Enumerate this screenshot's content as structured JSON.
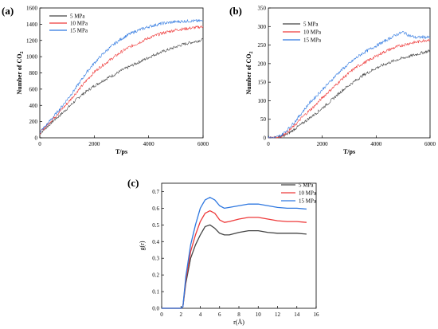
{
  "colors": {
    "5 MPa": "#444444",
    "10 MPa": "#ee3a3a",
    "15 MPa": "#2f78e0"
  },
  "chart_data": [
    {
      "panel": "(a)",
      "type": "line",
      "xlabel": "T/ps",
      "ylabel_main": "Number of CO",
      "ylabel_sub": "2",
      "xlim": [
        0,
        6000
      ],
      "ylim": [
        0,
        1600
      ],
      "xticks": [
        0,
        2000,
        4000,
        6000
      ],
      "yticks": [
        0,
        200,
        400,
        600,
        800,
        1000,
        1200,
        1400,
        1600
      ],
      "legend": "top-left",
      "series": [
        {
          "name": "5 MPa",
          "x": [
            0,
            250,
            500,
            750,
            1000,
            1250,
            1500,
            1750,
            2000,
            2250,
            2500,
            2750,
            3000,
            3250,
            3500,
            3750,
            4000,
            4250,
            4500,
            4750,
            5000,
            5250,
            5500,
            5750,
            6000
          ],
          "y": [
            50,
            130,
            210,
            280,
            360,
            440,
            520,
            580,
            640,
            690,
            740,
            780,
            830,
            870,
            910,
            950,
            990,
            1030,
            1060,
            1090,
            1120,
            1150,
            1170,
            1190,
            1210
          ]
        },
        {
          "name": "10 MPa",
          "x": [
            0,
            250,
            500,
            750,
            1000,
            1250,
            1500,
            1750,
            2000,
            2250,
            2500,
            2750,
            3000,
            3250,
            3500,
            3750,
            4000,
            4250,
            4500,
            4750,
            5000,
            5250,
            5500,
            5750,
            6000
          ],
          "y": [
            60,
            150,
            240,
            330,
            420,
            520,
            620,
            720,
            810,
            880,
            940,
            1000,
            1060,
            1110,
            1150,
            1190,
            1230,
            1260,
            1290,
            1310,
            1330,
            1340,
            1350,
            1360,
            1370
          ]
        },
        {
          "name": "15 MPa",
          "x": [
            0,
            250,
            500,
            750,
            1000,
            1250,
            1500,
            1750,
            2000,
            2250,
            2500,
            2750,
            3000,
            3250,
            3500,
            3750,
            4000,
            4250,
            4500,
            4750,
            5000,
            5250,
            5500,
            5750,
            6000
          ],
          "y": [
            70,
            160,
            260,
            360,
            470,
            580,
            700,
            820,
            920,
            1010,
            1090,
            1160,
            1220,
            1270,
            1310,
            1340,
            1370,
            1390,
            1410,
            1420,
            1430,
            1435,
            1440,
            1440,
            1440
          ]
        }
      ]
    },
    {
      "panel": "(b)",
      "type": "line",
      "xlabel": "T/ps",
      "ylabel_main": "Number of CO",
      "ylabel_sub": "2",
      "xlim": [
        0,
        6000
      ],
      "ylim": [
        0,
        350
      ],
      "xticks": [
        0,
        2000,
        4000,
        6000
      ],
      "yticks": [
        0,
        50,
        100,
        150,
        200,
        250,
        300,
        350
      ],
      "legend": "top-center",
      "series": [
        {
          "name": "5 MPa",
          "x": [
            0,
            250,
            500,
            750,
            1000,
            1250,
            1500,
            1750,
            2000,
            2250,
            2500,
            2750,
            3000,
            3250,
            3500,
            3750,
            4000,
            4250,
            4500,
            4750,
            5000,
            5250,
            5500,
            5750,
            6000
          ],
          "y": [
            0,
            0,
            3,
            12,
            25,
            38,
            52,
            65,
            80,
            95,
            112,
            128,
            142,
            155,
            168,
            178,
            188,
            196,
            203,
            210,
            215,
            220,
            225,
            230,
            235
          ]
        },
        {
          "name": "10 MPa",
          "x": [
            0,
            250,
            500,
            750,
            1000,
            1250,
            1500,
            1750,
            2000,
            2250,
            2500,
            2750,
            3000,
            3250,
            3500,
            3750,
            4000,
            4250,
            4500,
            4750,
            5000,
            5250,
            5500,
            5750,
            6000
          ],
          "y": [
            0,
            0,
            5,
            18,
            35,
            55,
            72,
            88,
            108,
            125,
            142,
            160,
            175,
            190,
            200,
            210,
            220,
            230,
            238,
            245,
            250,
            255,
            258,
            262,
            265
          ]
        },
        {
          "name": "15 MPa",
          "x": [
            0,
            250,
            500,
            750,
            1000,
            1250,
            1500,
            1750,
            2000,
            2250,
            2500,
            2750,
            3000,
            3250,
            3500,
            3750,
            4000,
            4250,
            4500,
            4750,
            5000,
            5250,
            5500,
            5750,
            6000
          ],
          "y": [
            0,
            0,
            8,
            25,
            45,
            68,
            92,
            110,
            130,
            148,
            168,
            185,
            200,
            215,
            228,
            238,
            248,
            258,
            268,
            278,
            285,
            275,
            270,
            272,
            270
          ]
        }
      ]
    },
    {
      "panel": "(c)",
      "type": "line",
      "xlabel": "r(Å)",
      "ylabel_main": "g(r)",
      "xlim": [
        0,
        16
      ],
      "ylim": [
        0,
        0.75
      ],
      "xticks": [
        0,
        2,
        4,
        6,
        8,
        10,
        12,
        14,
        16
      ],
      "yticks": [
        0.0,
        0.1,
        0.2,
        0.3,
        0.4,
        0.5,
        0.6,
        0.7
      ],
      "legend": "top-right",
      "series": [
        {
          "name": "5 MPa",
          "x": [
            0,
            1,
            2,
            2.2,
            2.5,
            3,
            3.5,
            4,
            4.5,
            5,
            5.5,
            6,
            6.5,
            7,
            8,
            9,
            10,
            11,
            12,
            13,
            14,
            15
          ],
          "y": [
            0,
            0,
            0,
            0.01,
            0.15,
            0.3,
            0.38,
            0.44,
            0.49,
            0.5,
            0.48,
            0.45,
            0.44,
            0.44,
            0.455,
            0.465,
            0.465,
            0.455,
            0.45,
            0.45,
            0.45,
            0.445
          ]
        },
        {
          "name": "10 MPa",
          "x": [
            0,
            1,
            2,
            2.2,
            2.5,
            3,
            3.5,
            4,
            4.5,
            5,
            5.5,
            6,
            6.5,
            7,
            8,
            9,
            10,
            11,
            12,
            13,
            14,
            15
          ],
          "y": [
            0,
            0,
            0,
            0.01,
            0.17,
            0.34,
            0.44,
            0.52,
            0.57,
            0.585,
            0.57,
            0.53,
            0.515,
            0.52,
            0.535,
            0.545,
            0.545,
            0.535,
            0.525,
            0.52,
            0.52,
            0.515
          ]
        },
        {
          "name": "15 MPa",
          "x": [
            0,
            1,
            2,
            2.2,
            2.5,
            3,
            3.5,
            4,
            4.5,
            5,
            5.5,
            6,
            6.5,
            7,
            8,
            9,
            10,
            11,
            12,
            13,
            14,
            15
          ],
          "y": [
            0,
            0,
            0,
            0.01,
            0.19,
            0.38,
            0.5,
            0.6,
            0.65,
            0.665,
            0.65,
            0.615,
            0.6,
            0.605,
            0.615,
            0.625,
            0.625,
            0.615,
            0.605,
            0.6,
            0.6,
            0.595
          ]
        }
      ]
    }
  ]
}
